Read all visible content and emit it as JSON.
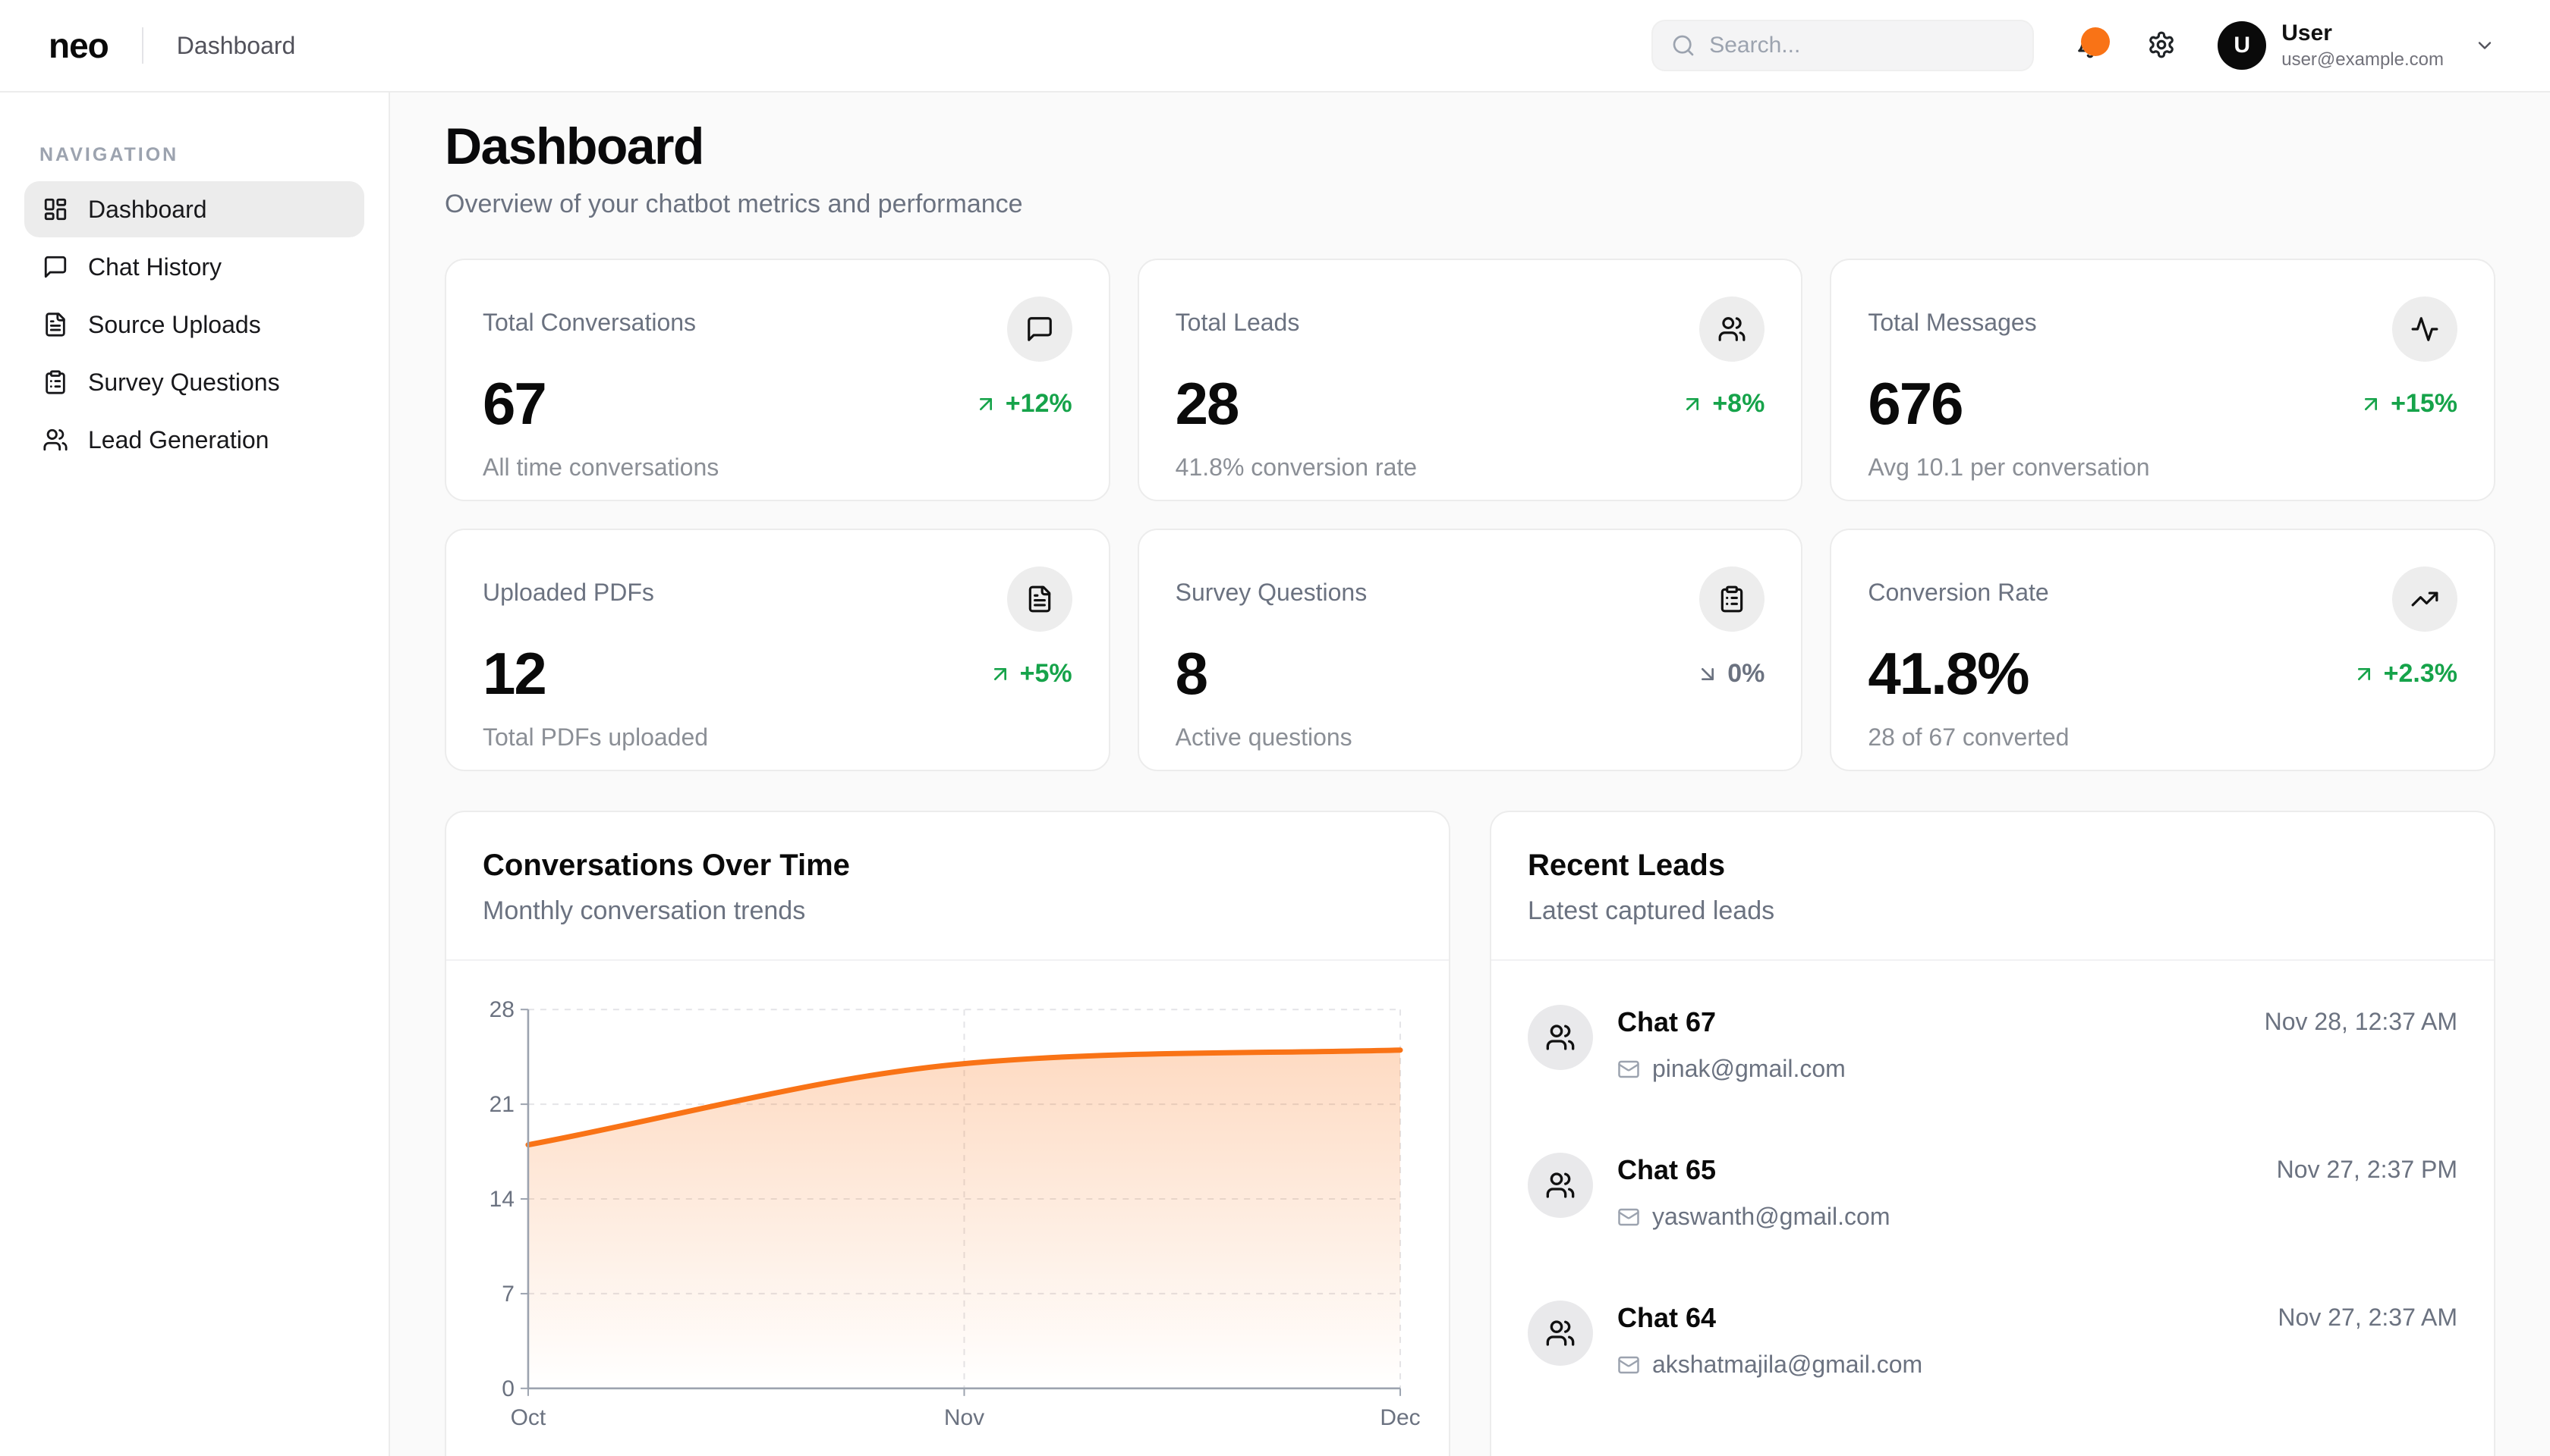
{
  "header": {
    "logo": "neo",
    "breadcrumb": "Dashboard",
    "search_placeholder": "Search...",
    "user": {
      "name": "User",
      "email": "user@example.com",
      "initial": "U"
    }
  },
  "sidebar": {
    "section_label": "NAVIGATION",
    "items": [
      {
        "label": "Dashboard",
        "icon": "layout-dashboard",
        "active": true
      },
      {
        "label": "Chat History",
        "icon": "message-square",
        "active": false
      },
      {
        "label": "Source Uploads",
        "icon": "file-text",
        "active": false
      },
      {
        "label": "Survey Questions",
        "icon": "clipboard-list",
        "active": false
      },
      {
        "label": "Lead Generation",
        "icon": "users",
        "active": false
      }
    ]
  },
  "page": {
    "title": "Dashboard",
    "subtitle": "Overview of your chatbot metrics and performance"
  },
  "stat_cards": [
    {
      "label": "Total Conversations",
      "icon": "message-square",
      "value": "67",
      "trend": "+12%",
      "trend_icon": "arrow-up-right",
      "trend_color": "#16a34a",
      "subtext": "All time conversations"
    },
    {
      "label": "Total Leads",
      "icon": "users",
      "value": "28",
      "trend": "+8%",
      "trend_icon": "arrow-up-right",
      "trend_color": "#16a34a",
      "subtext": "41.8% conversion rate"
    },
    {
      "label": "Total Messages",
      "icon": "activity",
      "value": "676",
      "trend": "+15%",
      "trend_icon": "arrow-up-right",
      "trend_color": "#16a34a",
      "subtext": "Avg 10.1 per conversation"
    },
    {
      "label": "Uploaded PDFs",
      "icon": "file-text",
      "value": "12",
      "trend": "+5%",
      "trend_icon": "arrow-up-right",
      "trend_color": "#16a34a",
      "subtext": "Total PDFs uploaded"
    },
    {
      "label": "Survey Questions",
      "icon": "clipboard-list",
      "value": "8",
      "trend": "0%",
      "trend_icon": "arrow-down-right",
      "trend_color": "#6b7280",
      "subtext": "Active questions"
    },
    {
      "label": "Conversion Rate",
      "icon": "trending-up",
      "value": "41.8%",
      "trend": "+2.3%",
      "trend_icon": "arrow-up-right",
      "trend_color": "#16a34a",
      "subtext": "28 of 67 converted"
    }
  ],
  "chart_card": {
    "title": "Conversations Over Time",
    "subtitle": "Monthly conversation trends"
  },
  "chart_data": {
    "type": "area",
    "title": "Conversations Over Time",
    "x": [
      "Oct",
      "Nov",
      "Dec"
    ],
    "series": [
      {
        "name": "Conversations",
        "values": [
          18,
          24,
          25
        ]
      }
    ],
    "xlabel": "",
    "ylabel": "",
    "ylim": [
      0,
      28
    ],
    "yticks": [
      0,
      7,
      14,
      21,
      28
    ],
    "grid": "dashed",
    "legend": "none",
    "line_color": "#f97316",
    "area_fill": "orange gradient fading to transparent"
  },
  "leads_card": {
    "title": "Recent Leads",
    "subtitle": "Latest captured leads",
    "leads": [
      {
        "name": "Chat 67",
        "email": "pinak@gmail.com",
        "timestamp": "Nov 28, 12:37 AM"
      },
      {
        "name": "Chat 65",
        "email": "yaswanth@gmail.com",
        "timestamp": "Nov 27, 2:37 PM"
      },
      {
        "name": "Chat 64",
        "email": "akshatmajila@gmail.com",
        "timestamp": "Nov 27, 2:37 AM"
      }
    ]
  },
  "colors": {
    "accent_orange": "#f97316",
    "positive_green": "#16a34a",
    "neutral_gray": "#6b7280",
    "main_background": "#fafafa"
  }
}
